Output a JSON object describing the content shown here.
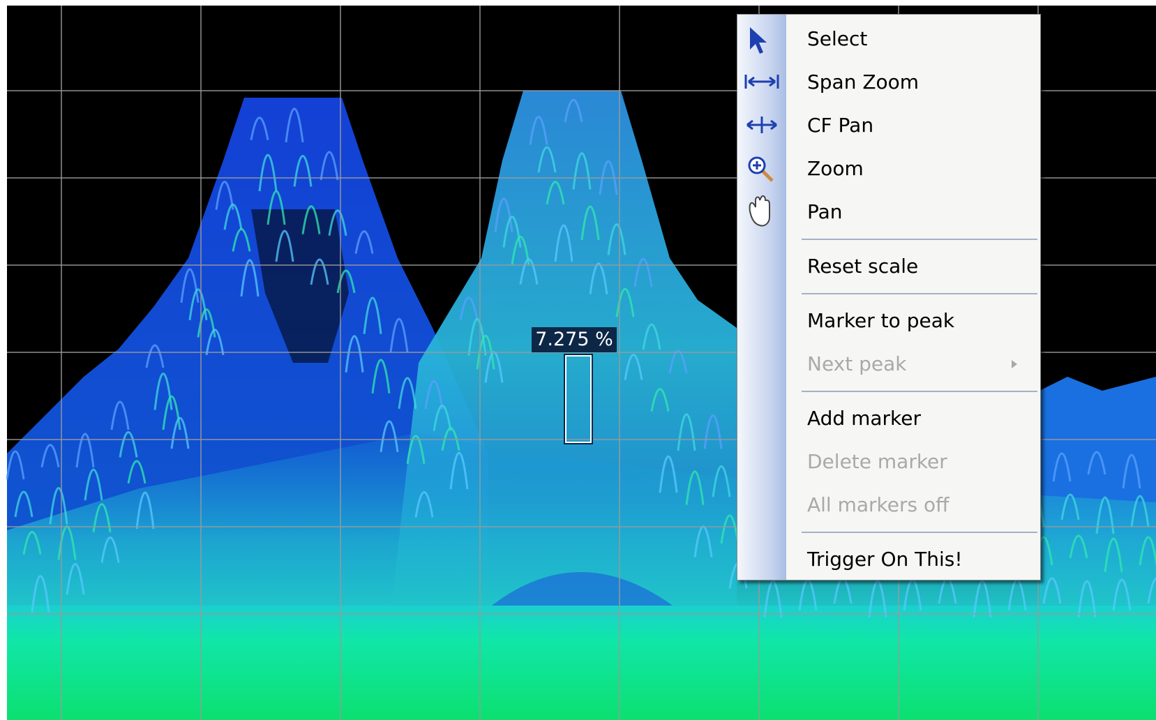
{
  "marker": {
    "label": "7.275 %"
  },
  "menu": {
    "groups": [
      [
        {
          "label": "Select",
          "enabled": true
        },
        {
          "label": "Span Zoom",
          "enabled": true
        },
        {
          "label": "CF Pan",
          "enabled": true
        },
        {
          "label": "Zoom",
          "enabled": true
        },
        {
          "label": "Pan",
          "enabled": true
        }
      ],
      [
        {
          "label": "Reset scale",
          "enabled": true
        }
      ],
      [
        {
          "label": "Marker to peak",
          "enabled": true
        },
        {
          "label": "Next peak",
          "enabled": false,
          "submenu": true
        }
      ],
      [
        {
          "label": "Add marker",
          "enabled": true
        },
        {
          "label": "Delete marker",
          "enabled": false
        },
        {
          "label": "All markers off",
          "enabled": false
        }
      ],
      [
        {
          "label": "Trigger On This!",
          "enabled": true
        }
      ]
    ]
  }
}
